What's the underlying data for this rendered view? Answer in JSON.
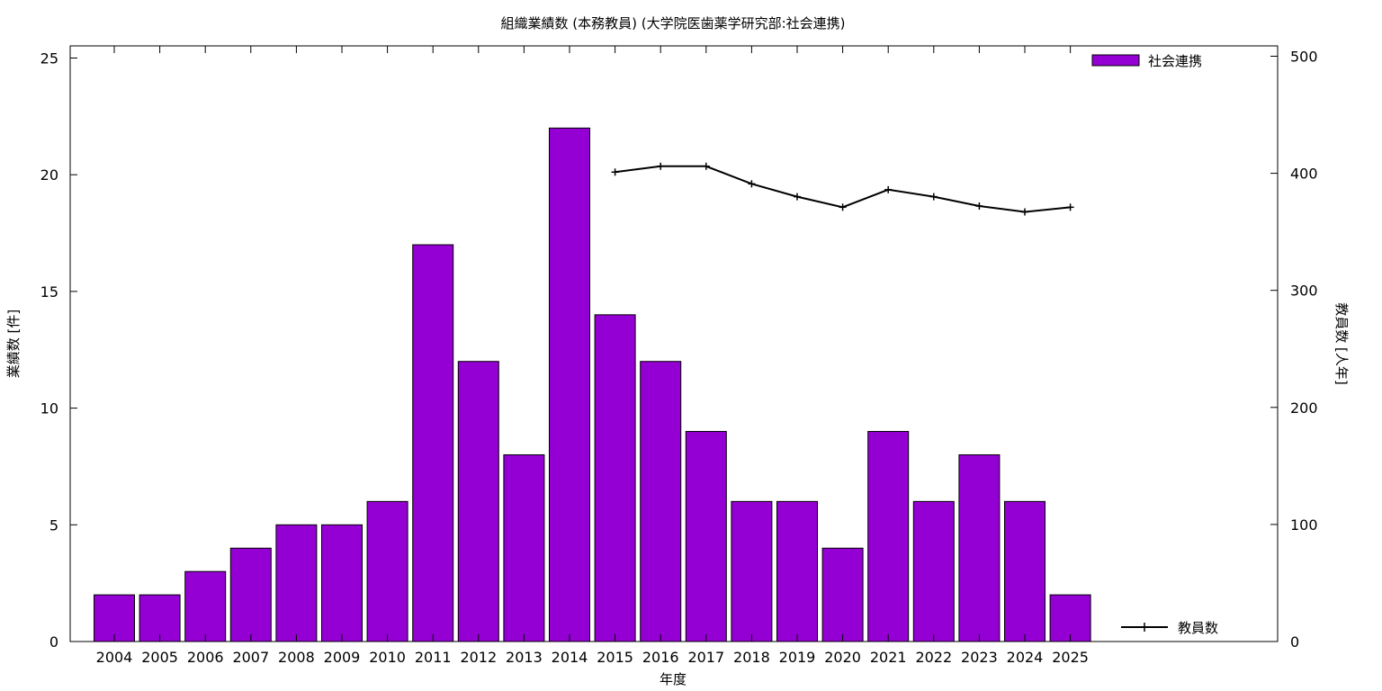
{
  "chart_data": {
    "type": "bar",
    "title": "組織業績数 (本務教員) (大学院医歯薬学研究部:社会連携)",
    "xlabel": "年度",
    "ylabel": "業績数 [件]",
    "y2label": "教員数 [人年]",
    "categories": [
      "2004",
      "2005",
      "2006",
      "2007",
      "2008",
      "2009",
      "2010",
      "2011",
      "2012",
      "2013",
      "2014",
      "2015",
      "2016",
      "2017",
      "2018",
      "2019",
      "2020",
      "2021",
      "2022",
      "2023",
      "2024",
      "2025"
    ],
    "series": [
      {
        "name": "社会連携",
        "type": "bar",
        "axis": "left",
        "color": "#9400d3",
        "values": [
          2,
          2,
          3,
          4,
          5,
          5,
          6,
          17,
          12,
          8,
          22,
          14,
          12,
          9,
          6,
          6,
          4,
          9,
          6,
          8,
          6,
          2
        ]
      },
      {
        "name": "教員数",
        "type": "line",
        "axis": "right",
        "color": "#000000",
        "values": [
          null,
          null,
          null,
          null,
          null,
          null,
          null,
          null,
          null,
          null,
          null,
          401,
          406,
          406,
          391,
          380,
          371,
          386,
          380,
          372,
          367,
          371
        ]
      }
    ],
    "ylim": [
      0,
      25
    ],
    "yticks": [
      0,
      5,
      10,
      15,
      20,
      25
    ],
    "y2lim": [
      0,
      500
    ],
    "y2ticks": [
      0,
      100,
      200,
      300,
      400,
      500
    ],
    "grid": false,
    "legend": [
      "top-right",
      "bottom-right"
    ]
  }
}
